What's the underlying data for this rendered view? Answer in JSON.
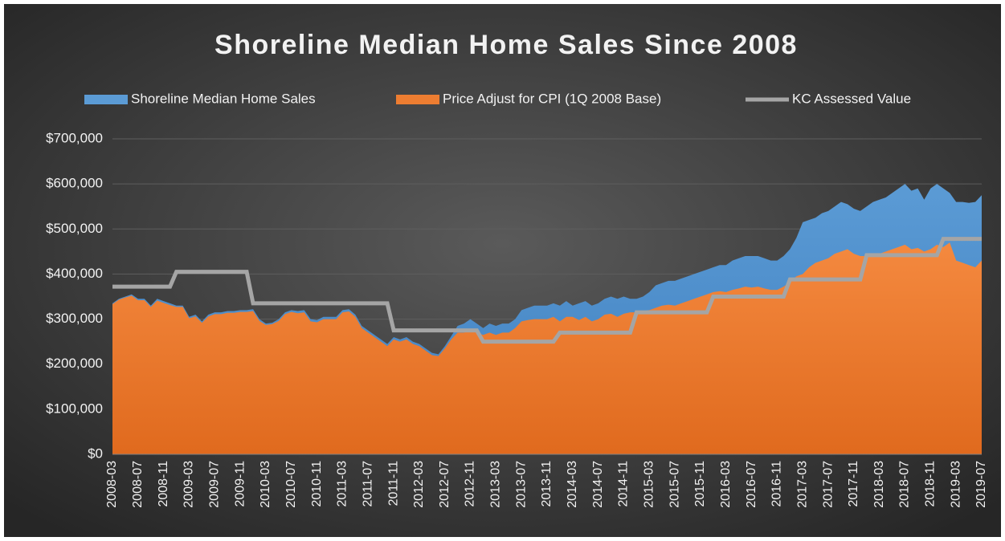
{
  "chart_data": {
    "type": "area",
    "title": "Shoreline Median Home Sales Since 2008",
    "categories": [
      "2008-03",
      null,
      null,
      null,
      "2008-07",
      null,
      null,
      null,
      "2008-11",
      null,
      null,
      null,
      "2009-03",
      null,
      null,
      null,
      "2009-07",
      null,
      null,
      null,
      "2009-11",
      null,
      null,
      null,
      "2010-03",
      null,
      null,
      null,
      "2010-07",
      null,
      null,
      null,
      "2010-11",
      null,
      null,
      null,
      "2011-03",
      null,
      null,
      null,
      "2011-07",
      null,
      null,
      null,
      "2011-11",
      null,
      null,
      null,
      "2012-03",
      null,
      null,
      null,
      "2012-07",
      null,
      null,
      null,
      "2012-11",
      null,
      null,
      null,
      "2013-03",
      null,
      null,
      null,
      "2013-07",
      null,
      null,
      null,
      "2013-11",
      null,
      null,
      null,
      "2014-03",
      null,
      null,
      null,
      "2014-07",
      null,
      null,
      null,
      "2014-11",
      null,
      null,
      null,
      "2015-03",
      null,
      null,
      null,
      "2015-07",
      null,
      null,
      null,
      "2015-11",
      null,
      null,
      null,
      "2016-03",
      null,
      null,
      null,
      "2016-07",
      null,
      null,
      null,
      "2016-11",
      null,
      null,
      null,
      "2017-03",
      null,
      null,
      null,
      "2017-07",
      null,
      null,
      null,
      "2017-11",
      null,
      null,
      null,
      "2018-03",
      null,
      null,
      null,
      "2018-07",
      null,
      null,
      null,
      "2018-11",
      null,
      null,
      null,
      "2019-03",
      null,
      null,
      null,
      "2019-07"
    ],
    "series": [
      {
        "name": "Shoreline Median Home Sales",
        "type": "area",
        "color": "#5b9bd5",
        "values": [
          335000,
          345000,
          350000,
          355000,
          345000,
          345000,
          330000,
          345000,
          340000,
          335000,
          330000,
          330000,
          305000,
          310000,
          295000,
          310000,
          315000,
          315000,
          318000,
          318000,
          320000,
          320000,
          322000,
          300000,
          290000,
          292000,
          300000,
          315000,
          320000,
          318000,
          320000,
          300000,
          298000,
          305000,
          305000,
          305000,
          320000,
          322000,
          310000,
          285000,
          275000,
          265000,
          255000,
          245000,
          260000,
          255000,
          260000,
          250000,
          245000,
          235000,
          225000,
          222000,
          240000,
          262000,
          285000,
          290000,
          300000,
          290000,
          280000,
          290000,
          285000,
          290000,
          290000,
          300000,
          320000,
          325000,
          330000,
          330000,
          330000,
          335000,
          330000,
          340000,
          330000,
          335000,
          340000,
          330000,
          335000,
          345000,
          350000,
          345000,
          350000,
          345000,
          345000,
          350000,
          360000,
          375000,
          380000,
          385000,
          385000,
          390000,
          395000,
          400000,
          405000,
          410000,
          415000,
          420000,
          420000,
          430000,
          435000,
          440000,
          440000,
          440000,
          435000,
          430000,
          430000,
          440000,
          455000,
          480000,
          515000,
          520000,
          525000,
          535000,
          540000,
          550000,
          560000,
          555000,
          545000,
          540000,
          550000,
          560000,
          565000,
          570000,
          580000,
          590000,
          600000,
          585000,
          590000,
          565000,
          590000,
          600000,
          590000,
          580000,
          560000,
          560000,
          558000,
          560000,
          575000
        ]
      },
      {
        "name": "Price Adjust for CPI (1Q 2008 Base)",
        "type": "area",
        "color": "#ed7d31",
        "values": [
          333000,
          343000,
          348000,
          352000,
          342000,
          342000,
          327000,
          341000,
          336000,
          331000,
          327000,
          327000,
          302000,
          306000,
          292000,
          306000,
          311000,
          311000,
          314000,
          314000,
          316000,
          316000,
          318000,
          296000,
          287000,
          289000,
          296000,
          311000,
          316000,
          313000,
          315000,
          295000,
          293000,
          300000,
          300000,
          300000,
          315000,
          317000,
          305000,
          280000,
          270000,
          260000,
          250000,
          240000,
          255000,
          250000,
          255000,
          245000,
          240000,
          230000,
          220000,
          218000,
          235000,
          255000,
          270000,
          270000,
          275000,
          270000,
          265000,
          270000,
          265000,
          270000,
          270000,
          280000,
          295000,
          298000,
          300000,
          300000,
          300000,
          305000,
          295000,
          305000,
          305000,
          298000,
          305000,
          295000,
          300000,
          310000,
          312000,
          305000,
          312000,
          315000,
          315000,
          318000,
          320000,
          325000,
          330000,
          332000,
          330000,
          335000,
          340000,
          345000,
          350000,
          355000,
          360000,
          362000,
          360000,
          365000,
          368000,
          372000,
          370000,
          372000,
          368000,
          365000,
          365000,
          372000,
          382000,
          395000,
          400000,
          415000,
          425000,
          430000,
          435000,
          445000,
          450000,
          455000,
          445000,
          440000,
          440000,
          445000,
          445000,
          450000,
          455000,
          460000,
          465000,
          455000,
          458000,
          450000,
          455000,
          465000,
          460000,
          470000,
          430000,
          425000,
          420000,
          415000,
          430000
        ]
      },
      {
        "name": "KC Assessed Value",
        "type": "line",
        "color": "#a5a5a5",
        "values": [
          372000,
          372000,
          372000,
          372000,
          372000,
          372000,
          372000,
          372000,
          372000,
          372000,
          405000,
          405000,
          405000,
          405000,
          405000,
          405000,
          405000,
          405000,
          405000,
          405000,
          405000,
          405000,
          335000,
          335000,
          335000,
          335000,
          335000,
          335000,
          335000,
          335000,
          335000,
          335000,
          335000,
          335000,
          335000,
          335000,
          335000,
          335000,
          335000,
          335000,
          335000,
          335000,
          335000,
          335000,
          275000,
          275000,
          275000,
          275000,
          275000,
          275000,
          275000,
          275000,
          275000,
          275000,
          275000,
          275000,
          275000,
          275000,
          250000,
          250000,
          250000,
          250000,
          250000,
          250000,
          250000,
          250000,
          250000,
          250000,
          250000,
          250000,
          270000,
          270000,
          270000,
          270000,
          270000,
          270000,
          270000,
          270000,
          270000,
          270000,
          270000,
          270000,
          315000,
          315000,
          315000,
          315000,
          315000,
          315000,
          315000,
          315000,
          315000,
          315000,
          315000,
          315000,
          350000,
          350000,
          350000,
          350000,
          350000,
          350000,
          350000,
          350000,
          350000,
          350000,
          350000,
          350000,
          388000,
          388000,
          388000,
          388000,
          388000,
          388000,
          388000,
          388000,
          388000,
          388000,
          388000,
          388000,
          442000,
          442000,
          442000,
          442000,
          442000,
          442000,
          442000,
          442000,
          442000,
          442000,
          442000,
          442000,
          478000,
          478000,
          478000,
          478000,
          478000,
          478000,
          478000
        ]
      }
    ],
    "ylim": [
      0,
      700000
    ],
    "yticks": [
      {
        "value": 0,
        "label": "$0"
      },
      {
        "value": 100000,
        "label": "$100,000"
      },
      {
        "value": 200000,
        "label": "$200,000"
      },
      {
        "value": 300000,
        "label": "$300,000"
      },
      {
        "value": 400000,
        "label": "$400,000"
      },
      {
        "value": 500000,
        "label": "$500,000"
      },
      {
        "value": 600000,
        "label": "$600,000"
      },
      {
        "value": 700000,
        "label": "$700,000"
      }
    ],
    "grid": true,
    "legend": "top"
  }
}
